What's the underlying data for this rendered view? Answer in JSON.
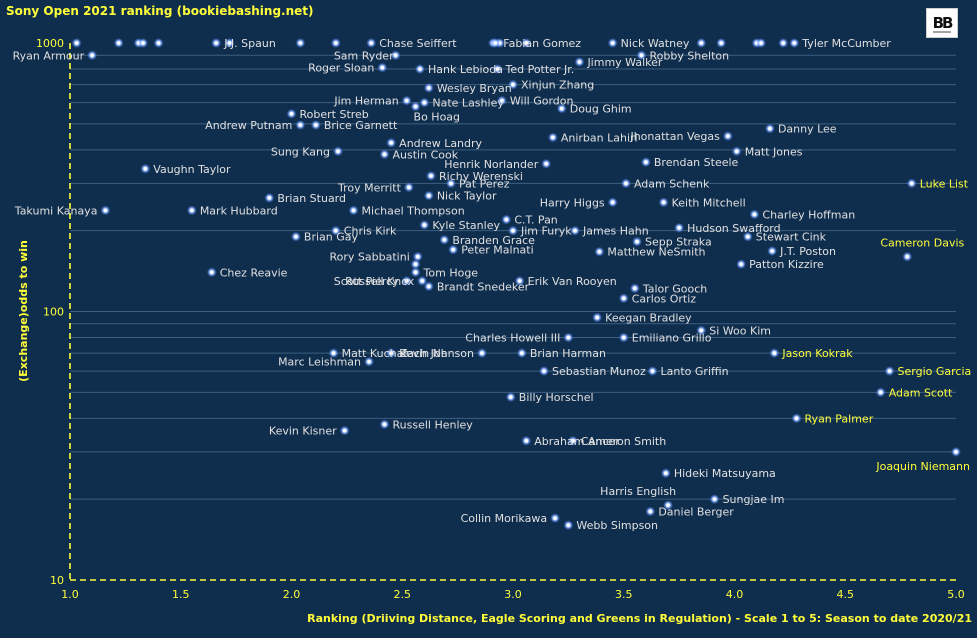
{
  "chart_data": {
    "type": "scatter",
    "title": "Sony Open 2021 ranking  (bookiebashing.net)",
    "xlabel": "Ranking (Driiving Distance, Eagle Scoring and Greens in Regulation) - Scale 1 to 5: Season to date 2020/21",
    "ylabel": "(Exchange)odds to win",
    "xlim": [
      1.0,
      5.0
    ],
    "ylim": [
      10,
      1000
    ],
    "yscale": "log",
    "x_ticks": [
      "1.0",
      "1.5",
      "2.0",
      "2.5",
      "3.0",
      "3.5",
      "4.0",
      "4.5",
      "5.0"
    ],
    "y_ticks": [
      "10",
      "100",
      "1000"
    ],
    "grid": "horizontal",
    "marker_color": "#7aa8ff",
    "label_color": "#e0e0e0",
    "highlight_color": "#ffff3a",
    "points": [
      {
        "name": "J.J. Spaun",
        "x": 1.66,
        "y": 1000
      },
      {
        "name": "Chase Seiffert",
        "x": 2.36,
        "y": 1000
      },
      {
        "name": "Fabian Gomez",
        "x": 2.92,
        "y": 1000
      },
      {
        "name": "Nick Watney",
        "x": 3.45,
        "y": 1000
      },
      {
        "name": "Tyler McCumber",
        "x": 4.27,
        "y": 1000
      },
      {
        "name": "Ryan Armour",
        "x": 1.1,
        "y": 900
      },
      {
        "name": "Sam Ryder",
        "x": 2.47,
        "y": 900
      },
      {
        "name": "Robby Shelton",
        "x": 3.58,
        "y": 900
      },
      {
        "name": "Jimmy Walker",
        "x": 3.3,
        "y": 850
      },
      {
        "name": "Roger Sloan",
        "x": 2.41,
        "y": 810
      },
      {
        "name": "Hank Lebioda",
        "x": 2.58,
        "y": 800
      },
      {
        "name": "Ted Potter Jr.",
        "x": 2.93,
        "y": 800
      },
      {
        "name": "Xinjun Zhang",
        "x": 3.0,
        "y": 700
      },
      {
        "name": "Wesley Bryan",
        "x": 2.62,
        "y": 680
      },
      {
        "name": "Jim Herman",
        "x": 2.52,
        "y": 610
      },
      {
        "name": "Nate Lashley",
        "x": 2.6,
        "y": 600
      },
      {
        "name": "Will Gordon",
        "x": 2.95,
        "y": 610
      },
      {
        "name": "Doug Ghim",
        "x": 3.22,
        "y": 570
      },
      {
        "name": "Bo Hoag",
        "x": 2.56,
        "y": 580
      },
      {
        "name": "Robert Streb",
        "x": 2.0,
        "y": 545
      },
      {
        "name": "Andrew Putnam",
        "x": 2.04,
        "y": 495
      },
      {
        "name": "Brice Garnett",
        "x": 2.11,
        "y": 495
      },
      {
        "name": "Jhonattan Vegas",
        "x": 3.97,
        "y": 450
      },
      {
        "name": "Danny Lee",
        "x": 4.16,
        "y": 480
      },
      {
        "name": "Anirban Lahiri",
        "x": 3.18,
        "y": 445
      },
      {
        "name": "Andrew Landry",
        "x": 2.45,
        "y": 425
      },
      {
        "name": "Matt Jones",
        "x": 4.01,
        "y": 395
      },
      {
        "name": "Sung Kang",
        "x": 2.21,
        "y": 395
      },
      {
        "name": "Austin Cook",
        "x": 2.42,
        "y": 385
      },
      {
        "name": "Brendan Steele",
        "x": 3.6,
        "y": 360
      },
      {
        "name": "Henrik Norlander",
        "x": 3.15,
        "y": 355
      },
      {
        "name": "Vaughn Taylor",
        "x": 1.34,
        "y": 340
      },
      {
        "name": "Richy Werenski",
        "x": 2.63,
        "y": 320
      },
      {
        "name": "Luke List",
        "x": 4.8,
        "y": 300
      },
      {
        "name": "Adam Schenk",
        "x": 3.51,
        "y": 300
      },
      {
        "name": "Pat Perez",
        "x": 2.72,
        "y": 300
      },
      {
        "name": "Troy Merritt",
        "x": 2.53,
        "y": 290
      },
      {
        "name": "Nick Taylor",
        "x": 2.62,
        "y": 270
      },
      {
        "name": "Brian Stuard",
        "x": 1.9,
        "y": 265
      },
      {
        "name": "Harry Higgs",
        "x": 3.45,
        "y": 255
      },
      {
        "name": "Keith Mitchell",
        "x": 3.68,
        "y": 255
      },
      {
        "name": "Takumi Kanaya",
        "x": 1.16,
        "y": 238
      },
      {
        "name": "Mark Hubbard",
        "x": 1.55,
        "y": 238
      },
      {
        "name": "Michael Thompson",
        "x": 2.28,
        "y": 238
      },
      {
        "name": "Charley Hoffman",
        "x": 4.09,
        "y": 230
      },
      {
        "name": "C.T. Pan",
        "x": 2.97,
        "y": 220
      },
      {
        "name": "Hudson Swafford",
        "x": 3.75,
        "y": 205
      },
      {
        "name": "Kyle Stanley",
        "x": 2.6,
        "y": 210
      },
      {
        "name": "Chris Kirk",
        "x": 2.2,
        "y": 200
      },
      {
        "name": "Jim Furyk",
        "x": 3.0,
        "y": 200
      },
      {
        "name": "James Hahn",
        "x": 3.28,
        "y": 200
      },
      {
        "name": "Stewart Cink",
        "x": 4.06,
        "y": 190
      },
      {
        "name": "Brian Gay",
        "x": 2.02,
        "y": 190
      },
      {
        "name": "Branden Grace",
        "x": 2.69,
        "y": 185
      },
      {
        "name": "Sepp Straka",
        "x": 3.56,
        "y": 182
      },
      {
        "name": "Cameron Davis",
        "x": 4.78,
        "y": 160
      },
      {
        "name": "J.T. Poston",
        "x": 4.17,
        "y": 168
      },
      {
        "name": "Peter Malnati",
        "x": 2.73,
        "y": 170
      },
      {
        "name": "Rory Sabbatini",
        "x": 2.57,
        "y": 160
      },
      {
        "name": "Matthew NeSmith",
        "x": 3.39,
        "y": 167
      },
      {
        "name": "Patton Kizzire",
        "x": 4.03,
        "y": 150
      },
      {
        "name": "Chez Reavie",
        "x": 1.64,
        "y": 140
      },
      {
        "name": "Tom Hoge",
        "x": 2.56,
        "y": 140
      },
      {
        "name": "Scott Piercy",
        "x": 2.52,
        "y": 130
      },
      {
        "name": "Erik Van Rooyen",
        "x": 3.03,
        "y": 130
      },
      {
        "name": "Russell Knox",
        "x": 2.59,
        "y": 130
      },
      {
        "name": "Brandt Snedeker",
        "x": 2.62,
        "y": 124
      },
      {
        "name": "Talor Gooch",
        "x": 3.55,
        "y": 122
      },
      {
        "name": "Carlos Ortiz",
        "x": 3.5,
        "y": 112
      },
      {
        "name": "Keegan Bradley",
        "x": 3.38,
        "y": 95
      },
      {
        "name": "Si Woo Kim",
        "x": 3.85,
        "y": 85
      },
      {
        "name": "Charles Howell III",
        "x": 3.25,
        "y": 80
      },
      {
        "name": "Emiliano Grillo",
        "x": 3.5,
        "y": 80
      },
      {
        "name": "Matt Kuchar",
        "x": 2.19,
        "y": 70
      },
      {
        "name": "Kevin Na",
        "x": 2.45,
        "y": 70
      },
      {
        "name": "Zach Johnson",
        "x": 2.86,
        "y": 70
      },
      {
        "name": "Brian Harman",
        "x": 3.04,
        "y": 70
      },
      {
        "name": "Jason Kokrak",
        "x": 4.18,
        "y": 70
      },
      {
        "name": "Marc Leishman",
        "x": 2.35,
        "y": 65
      },
      {
        "name": "Sebastian Munoz",
        "x": 3.14,
        "y": 60
      },
      {
        "name": "Lanto Griffin",
        "x": 3.63,
        "y": 60
      },
      {
        "name": "Sergio Garcia",
        "x": 4.7,
        "y": 60
      },
      {
        "name": "Adam Scott",
        "x": 4.66,
        "y": 50
      },
      {
        "name": "Billy Horschel",
        "x": 2.99,
        "y": 48
      },
      {
        "name": "Ryan Palmer",
        "x": 4.28,
        "y": 40
      },
      {
        "name": "Russell Henley",
        "x": 2.42,
        "y": 38
      },
      {
        "name": "Kevin Kisner",
        "x": 2.24,
        "y": 36
      },
      {
        "name": "Abraham Ancer",
        "x": 3.06,
        "y": 33
      },
      {
        "name": "Cameron Smith",
        "x": 3.27,
        "y": 33
      },
      {
        "name": "Joaquin Niemann",
        "x": 5.0,
        "y": 30
      },
      {
        "name": "Hideki Matsuyama",
        "x": 3.69,
        "y": 25
      },
      {
        "name": "Harris English",
        "x": 3.7,
        "y": 19
      },
      {
        "name": "Sungjae Im",
        "x": 3.91,
        "y": 20
      },
      {
        "name": "Daniel Berger",
        "x": 3.62,
        "y": 18
      },
      {
        "name": "Collin Morikawa",
        "x": 3.19,
        "y": 17
      },
      {
        "name": "Webb Simpson",
        "x": 3.25,
        "y": 16
      }
    ],
    "extra_markers": [
      {
        "x": 1.03,
        "y": 1000
      },
      {
        "x": 1.22,
        "y": 1000
      },
      {
        "x": 1.31,
        "y": 1000
      },
      {
        "x": 1.33,
        "y": 1000
      },
      {
        "x": 1.4,
        "y": 1000
      },
      {
        "x": 1.72,
        "y": 1000
      },
      {
        "x": 2.04,
        "y": 1000
      },
      {
        "x": 2.2,
        "y": 1000
      },
      {
        "x": 2.91,
        "y": 1000
      },
      {
        "x": 2.94,
        "y": 1000
      },
      {
        "x": 3.06,
        "y": 1000
      },
      {
        "x": 3.85,
        "y": 1000
      },
      {
        "x": 3.94,
        "y": 1000
      },
      {
        "x": 4.1,
        "y": 1000
      },
      {
        "x": 4.12,
        "y": 1000
      },
      {
        "x": 4.22,
        "y": 1000
      },
      {
        "x": 2.56,
        "y": 150
      }
    ]
  }
}
